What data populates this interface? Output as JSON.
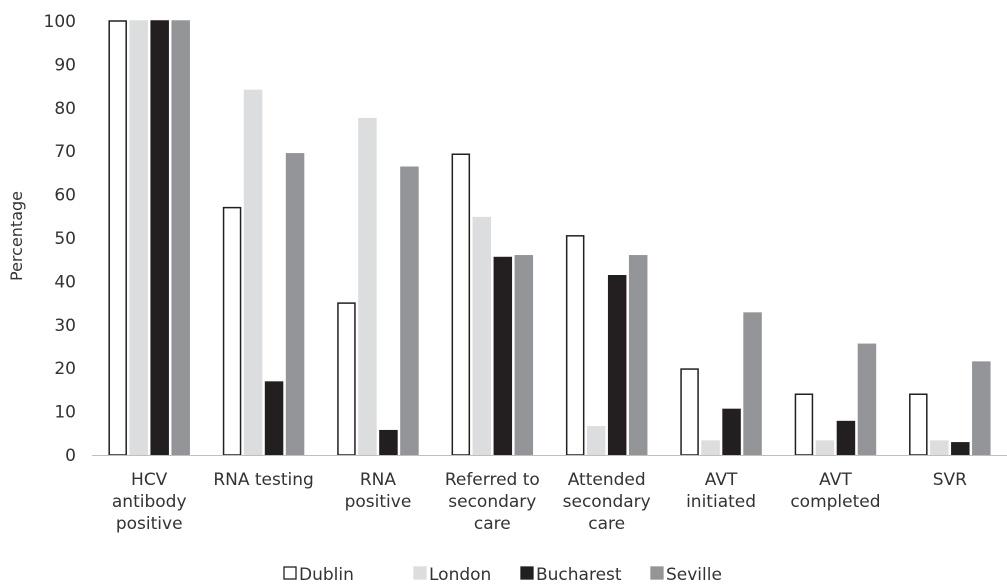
{
  "chart_data": {
    "type": "bar",
    "title": "",
    "xlabel": "",
    "ylabel": "Percentage",
    "ylim": [
      0,
      100
    ],
    "yticks": [
      0,
      10,
      20,
      30,
      40,
      50,
      60,
      70,
      80,
      90,
      100
    ],
    "grid": false,
    "legend_position": "bottom",
    "categories": [
      [
        "HCV",
        "antibody",
        "positive"
      ],
      [
        "RNA testing"
      ],
      [
        "RNA",
        "positive"
      ],
      [
        "Referred to",
        "secondary",
        "care"
      ],
      [
        "Attended",
        "secondary",
        "care"
      ],
      [
        "AVT",
        "initiated"
      ],
      [
        "AVT",
        "completed"
      ],
      [
        "SVR"
      ]
    ],
    "series": [
      {
        "name": "Dublin",
        "fill": "#ffffff",
        "stroke": "#231f20",
        "values": [
          100,
          57,
          35,
          69.3,
          50.5,
          19.8,
          14,
          14
        ]
      },
      {
        "name": "London",
        "fill": "#dcddde",
        "stroke": "#dcddde",
        "values": [
          100,
          84,
          77.5,
          54.7,
          6.5,
          3.2,
          3.2,
          3.2
        ]
      },
      {
        "name": "Bucharest",
        "fill": "#231f20",
        "stroke": "#231f20",
        "values": [
          100,
          16.8,
          5.6,
          45.5,
          41.3,
          10.5,
          7.7,
          2.8
        ]
      },
      {
        "name": "Seville",
        "fill": "#939598",
        "stroke": "#939598",
        "values": [
          100,
          69.4,
          66.3,
          45.9,
          45.9,
          32.7,
          25.5,
          21.4
        ]
      }
    ]
  }
}
